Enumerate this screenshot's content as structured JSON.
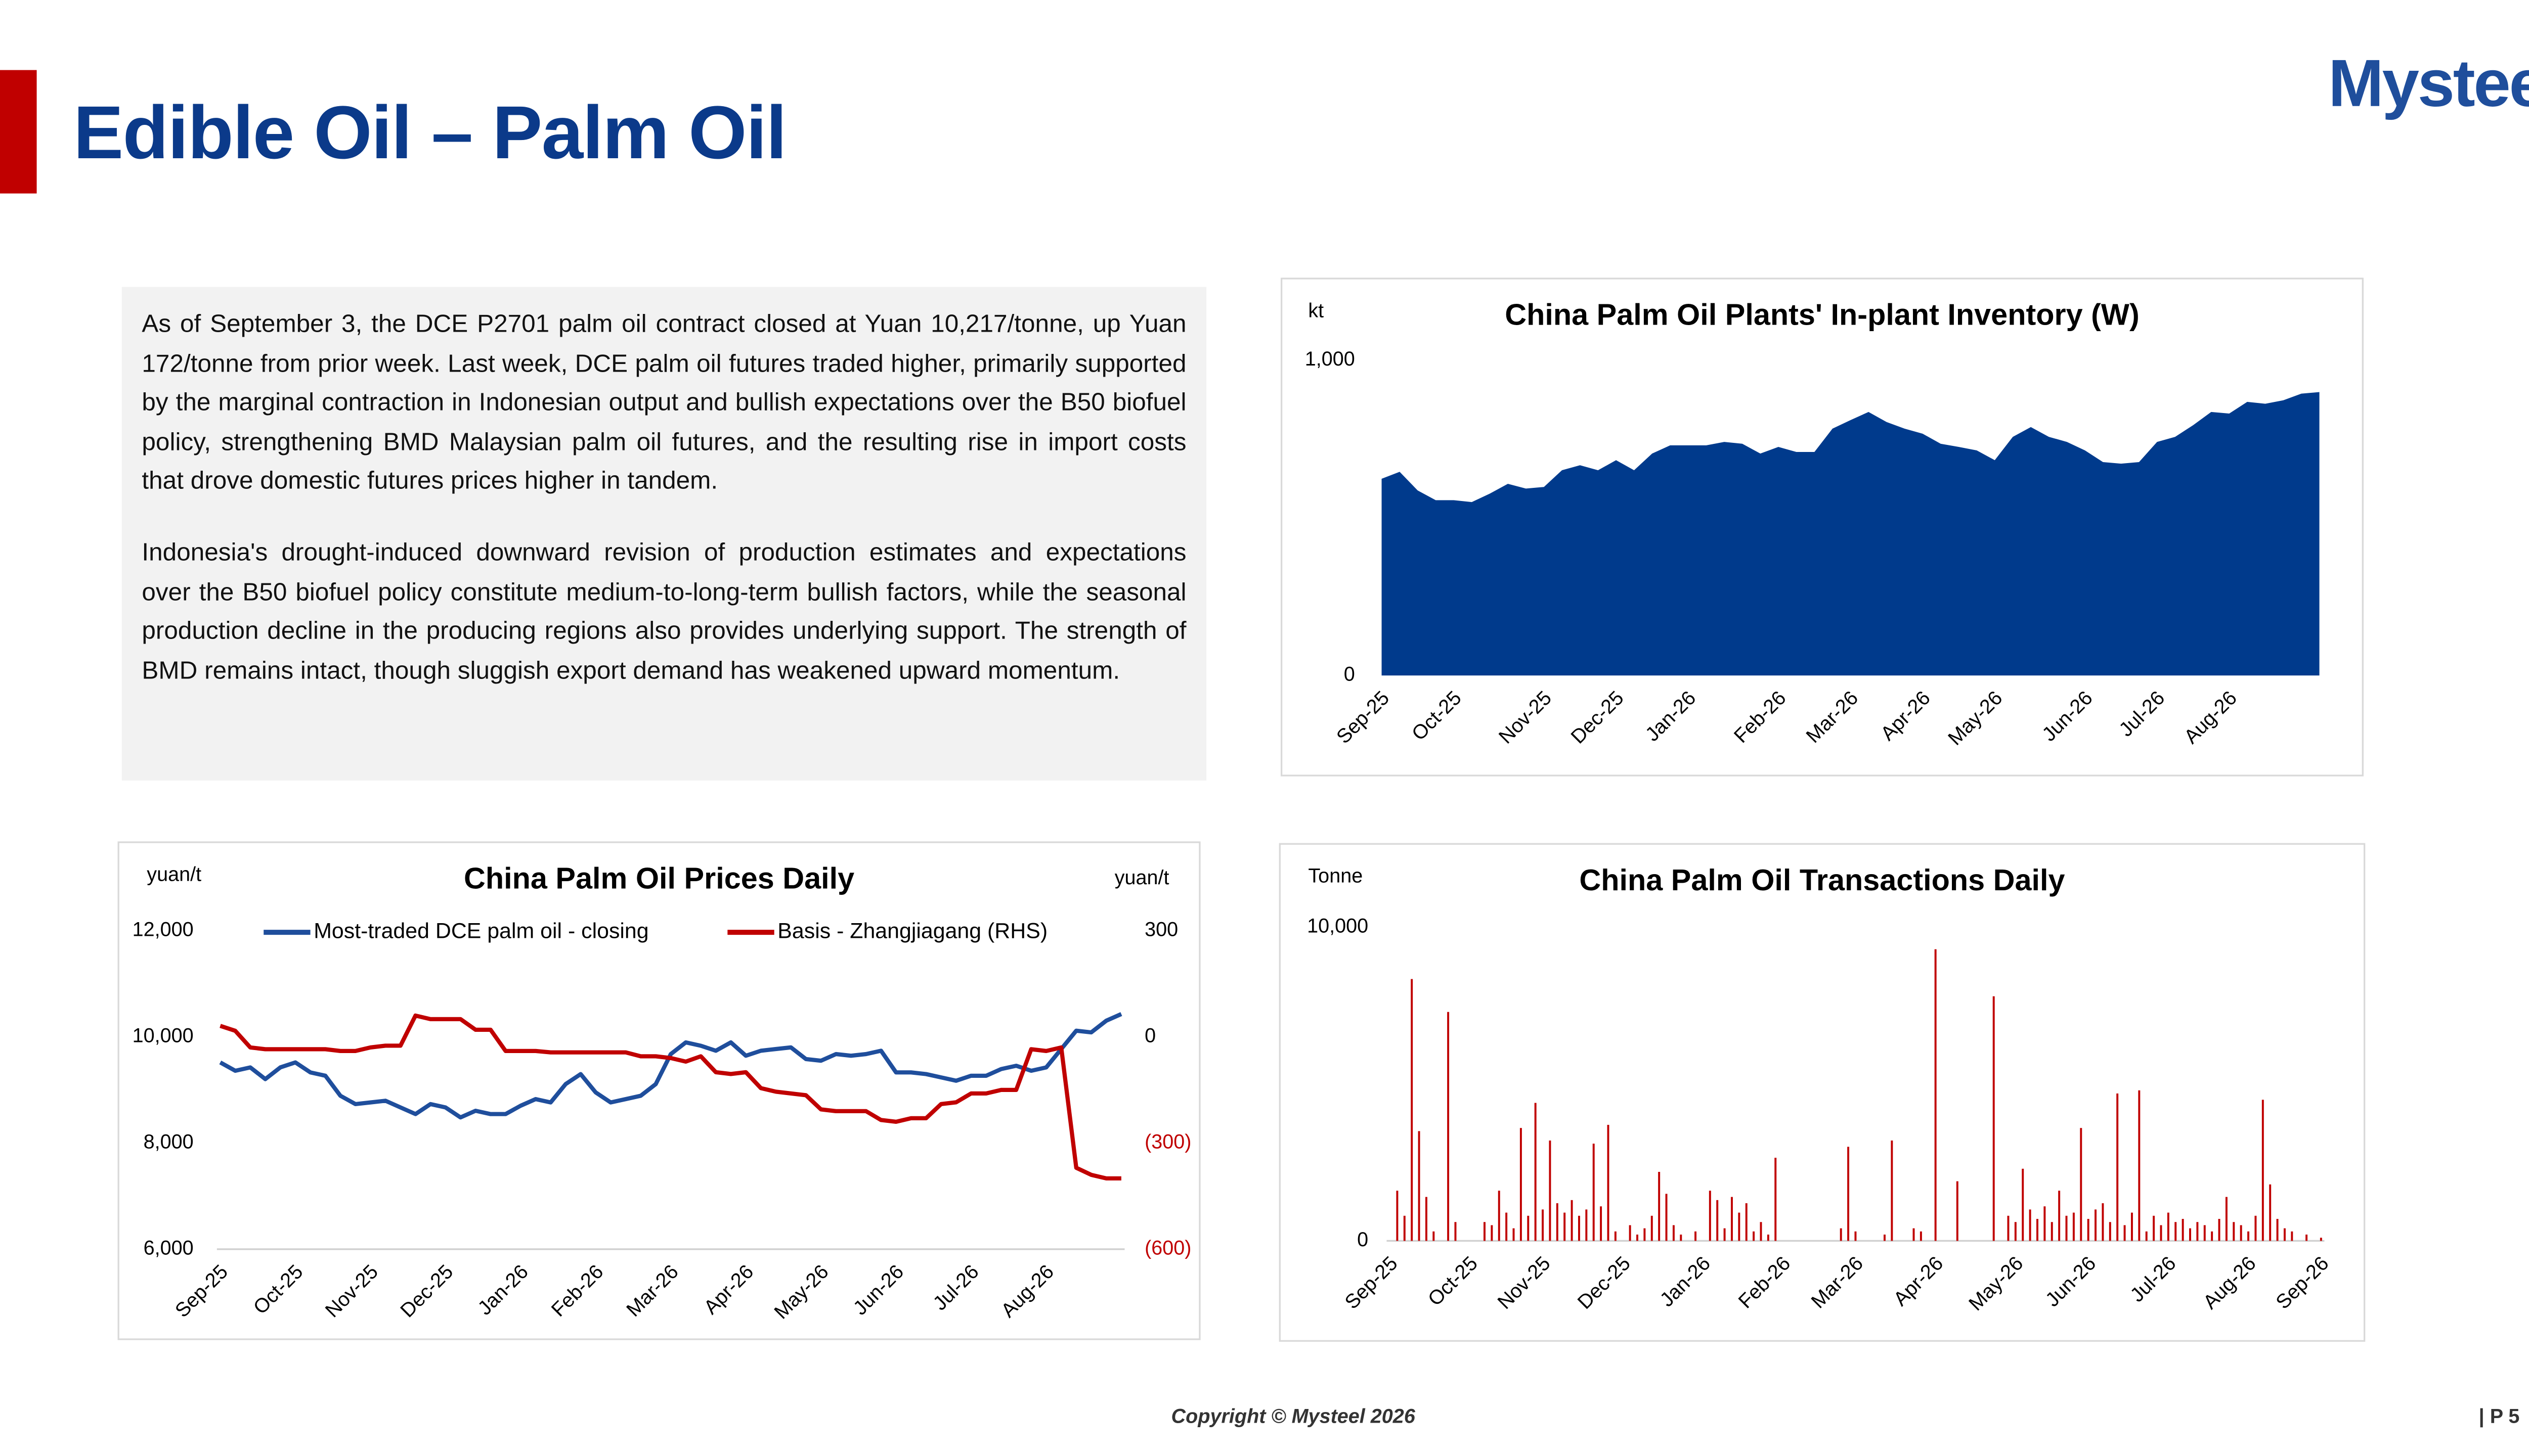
{
  "header": {
    "title": "Edible Oil – Palm Oil",
    "logo": "Mysteel"
  },
  "summary": {
    "paragraphs": [
      "As of September 3, the DCE P2701 palm oil contract closed at Yuan 10,217/tonne, up Yuan 172/tonne from prior week. Last week, DCE palm oil futures traded higher, primarily supported by the marginal contraction in Indonesian output and bullish expectations over the B50 biofuel policy, strengthening BMD Malaysian palm oil futures, and the resulting rise in import costs that drove domestic futures prices higher in tandem.",
      "Indonesia's drought-induced downward revision of production estimates and expectations over the B50 biofuel policy constitute medium-to-long-term bullish factors, while the seasonal production decline in the producing regions also provides underlying support. The strength of BMD remains intact, though sluggish export demand has weakened upward momentum."
    ]
  },
  "chart_data": [
    {
      "type": "area",
      "title": "China Palm Oil Plants' In-plant Inventory (W)",
      "y_label": "kt",
      "categories": [
        "Sep-25",
        null,
        null,
        null,
        "Oct-25",
        null,
        null,
        null,
        null,
        "Nov-25",
        null,
        null,
        null,
        "Dec-25",
        null,
        null,
        null,
        "Jan-26",
        null,
        null,
        null,
        null,
        "Feb-26",
        null,
        null,
        null,
        "Mar-26",
        null,
        null,
        null,
        "Apr-26",
        null,
        null,
        null,
        "May-26",
        null,
        null,
        null,
        null,
        "Jun-26",
        null,
        null,
        null,
        "Jul-26",
        null,
        null,
        null,
        "Aug-26",
        null,
        null,
        null,
        null,
        null
      ],
      "series": [
        {
          "name": "Inventory",
          "color": "#003a8c",
          "values": [
            624,
            646,
            587,
            556,
            556,
            550,
            577,
            608,
            593,
            598,
            651,
            667,
            651,
            683,
            651,
            704,
            730,
            730,
            730,
            741,
            735,
            704,
            725,
            709,
            709,
            783,
            810,
            836,
            804,
            783,
            767,
            735,
            725,
            714,
            683,
            757,
            788,
            757,
            741,
            714,
            677,
            672,
            677,
            741,
            757,
            794,
            836,
            831,
            868,
            862,
            873,
            894,
            899
          ]
        }
      ],
      "ylim": [
        0,
        1000
      ],
      "yticks": [
        0,
        {
          "value": 1000,
          "label": "1,000"
        }
      ]
    },
    {
      "type": "line",
      "title": "China Palm Oil Prices Daily",
      "y_label": "yuan/t",
      "y2_label": "yuan/t",
      "categories": [
        "Sep-25",
        null,
        null,
        null,
        null,
        "Oct-25",
        null,
        null,
        null,
        null,
        "Nov-25",
        null,
        null,
        null,
        null,
        "Dec-25",
        null,
        null,
        null,
        null,
        "Jan-26",
        null,
        null,
        null,
        null,
        "Feb-26",
        null,
        null,
        null,
        null,
        "Mar-26",
        null,
        null,
        null,
        null,
        "Apr-26",
        null,
        null,
        null,
        null,
        "May-26",
        null,
        null,
        null,
        null,
        "Jun-26",
        null,
        null,
        null,
        null,
        "Jul-26",
        null,
        null,
        null,
        null,
        "Aug-26",
        null,
        null,
        null,
        null,
        null
      ],
      "series": [
        {
          "name": "Most-traded DCE palm oil - closing",
          "color": "#1f4e9c",
          "values": [
            9518,
            9361,
            9424,
            9204,
            9424,
            9518,
            9330,
            9267,
            8890,
            8733,
            8764,
            8796,
            8670,
            8545,
            8733,
            8670,
            8482,
            8607,
            8545,
            8545,
            8702,
            8827,
            8764,
            9110,
            9298,
            8953,
            8764,
            8827,
            8890,
            9110,
            9675,
            9895,
            9832,
            9738,
            9895,
            9644,
            9738,
            9770,
            9801,
            9581,
            9550,
            9675,
            9644,
            9675,
            9738,
            9330,
            9330,
            9298,
            9236,
            9173,
            9267,
            9267,
            9393,
            9455,
            9361,
            9424,
            9770,
            10115,
            10084,
            10304,
            10429
          ]
        },
        {
          "name": "Basis - Zhangjiagang (RHS)",
          "color": "#c00000",
          "axis": "y2",
          "values": [
            31,
            17,
            -30,
            -35,
            -35,
            -35,
            -35,
            -35,
            -40,
            -40,
            -30,
            -25,
            -25,
            60,
            50,
            50,
            50,
            20,
            20,
            -40,
            -40,
            -40,
            -44,
            -44,
            -44,
            -44,
            -44,
            -44,
            -55,
            -55,
            -60,
            -70,
            -55,
            -100,
            -105,
            -100,
            -145,
            -155,
            -160,
            -165,
            -205,
            -210,
            -210,
            -210,
            -235,
            -240,
            -230,
            -230,
            -190,
            -185,
            -160,
            -160,
            -150,
            -150,
            -35,
            -40,
            -30,
            -370,
            -390,
            -400,
            -400
          ]
        }
      ],
      "ylim": [
        6000,
        12000
      ],
      "yticks": [
        {
          "value": 6000,
          "label": "6,000"
        },
        {
          "value": 8000,
          "label": "8,000"
        },
        {
          "value": 10000,
          "label": "10,000"
        },
        {
          "value": 12000,
          "label": "12,000"
        }
      ],
      "y2lim": [
        -600,
        300
      ],
      "y2ticks": [
        {
          "value": -600,
          "label": "(600)"
        },
        {
          "value": -300,
          "label": "(300)"
        },
        0,
        300
      ],
      "legend": "top"
    },
    {
      "type": "bar",
      "title": "China Palm Oil Transactions Daily",
      "y_label": "Tonne",
      "categories": [
        "Sep-25",
        null,
        null,
        null,
        null,
        null,
        null,
        null,
        null,
        null,
        null,
        "Oct-25",
        null,
        null,
        null,
        null,
        null,
        null,
        null,
        null,
        null,
        "Nov-25",
        null,
        null,
        null,
        null,
        null,
        null,
        null,
        null,
        null,
        null,
        "Dec-25",
        null,
        null,
        null,
        null,
        null,
        null,
        null,
        null,
        null,
        null,
        "Jan-26",
        null,
        null,
        null,
        null,
        null,
        null,
        null,
        null,
        null,
        null,
        "Feb-26",
        null,
        null,
        null,
        null,
        null,
        null,
        null,
        null,
        null,
        "Mar-26",
        null,
        null,
        null,
        null,
        null,
        null,
        null,
        null,
        null,
        null,
        "Apr-26",
        null,
        null,
        null,
        null,
        null,
        null,
        null,
        null,
        null,
        null,
        "May-26",
        null,
        null,
        null,
        null,
        null,
        null,
        null,
        null,
        null,
        "Jun-26",
        null,
        null,
        null,
        null,
        null,
        null,
        null,
        null,
        null,
        null,
        "Jul-26",
        null,
        null,
        null,
        null,
        null,
        null,
        null,
        null,
        null,
        null,
        "Aug-26",
        null,
        null,
        null,
        null,
        null,
        null,
        null,
        null,
        null,
        "Sep-26"
      ],
      "series": [
        {
          "name": "Transactions",
          "color": "#c00000",
          "values": [
            0,
            1600,
            800,
            8350,
            3500,
            1400,
            300,
            0,
            7300,
            600,
            0,
            0,
            0,
            600,
            500,
            1600,
            900,
            400,
            3600,
            800,
            4400,
            1000,
            3200,
            1200,
            900,
            1300,
            800,
            1000,
            3100,
            1100,
            3700,
            300,
            0,
            500,
            200,
            400,
            800,
            2200,
            1500,
            500,
            200,
            0,
            300,
            0,
            1600,
            1300,
            400,
            1400,
            900,
            1200,
            300,
            600,
            200,
            2650,
            0,
            0,
            0,
            0,
            0,
            0,
            0,
            0,
            400,
            3000,
            300,
            0,
            0,
            0,
            200,
            3200,
            0,
            0,
            400,
            300,
            0,
            9300,
            0,
            0,
            1900,
            0,
            0,
            0,
            0,
            7800,
            0,
            800,
            600,
            2300,
            1000,
            700,
            1100,
            600,
            1600,
            800,
            900,
            3600,
            700,
            1000,
            1200,
            600,
            4700,
            500,
            900,
            4800,
            300,
            800,
            500,
            900,
            600,
            700,
            400,
            600,
            500,
            300,
            700,
            1400,
            600,
            500,
            300,
            800,
            4500,
            1800,
            700,
            400,
            300,
            0,
            200,
            0,
            100
          ]
        }
      ],
      "ylim": [
        0,
        10000
      ],
      "yticks": [
        0,
        {
          "value": 10000,
          "label": "10,000"
        }
      ]
    }
  ],
  "footer": {
    "copyright": "Copyright © Mysteel 2026",
    "page": "| P 5"
  }
}
